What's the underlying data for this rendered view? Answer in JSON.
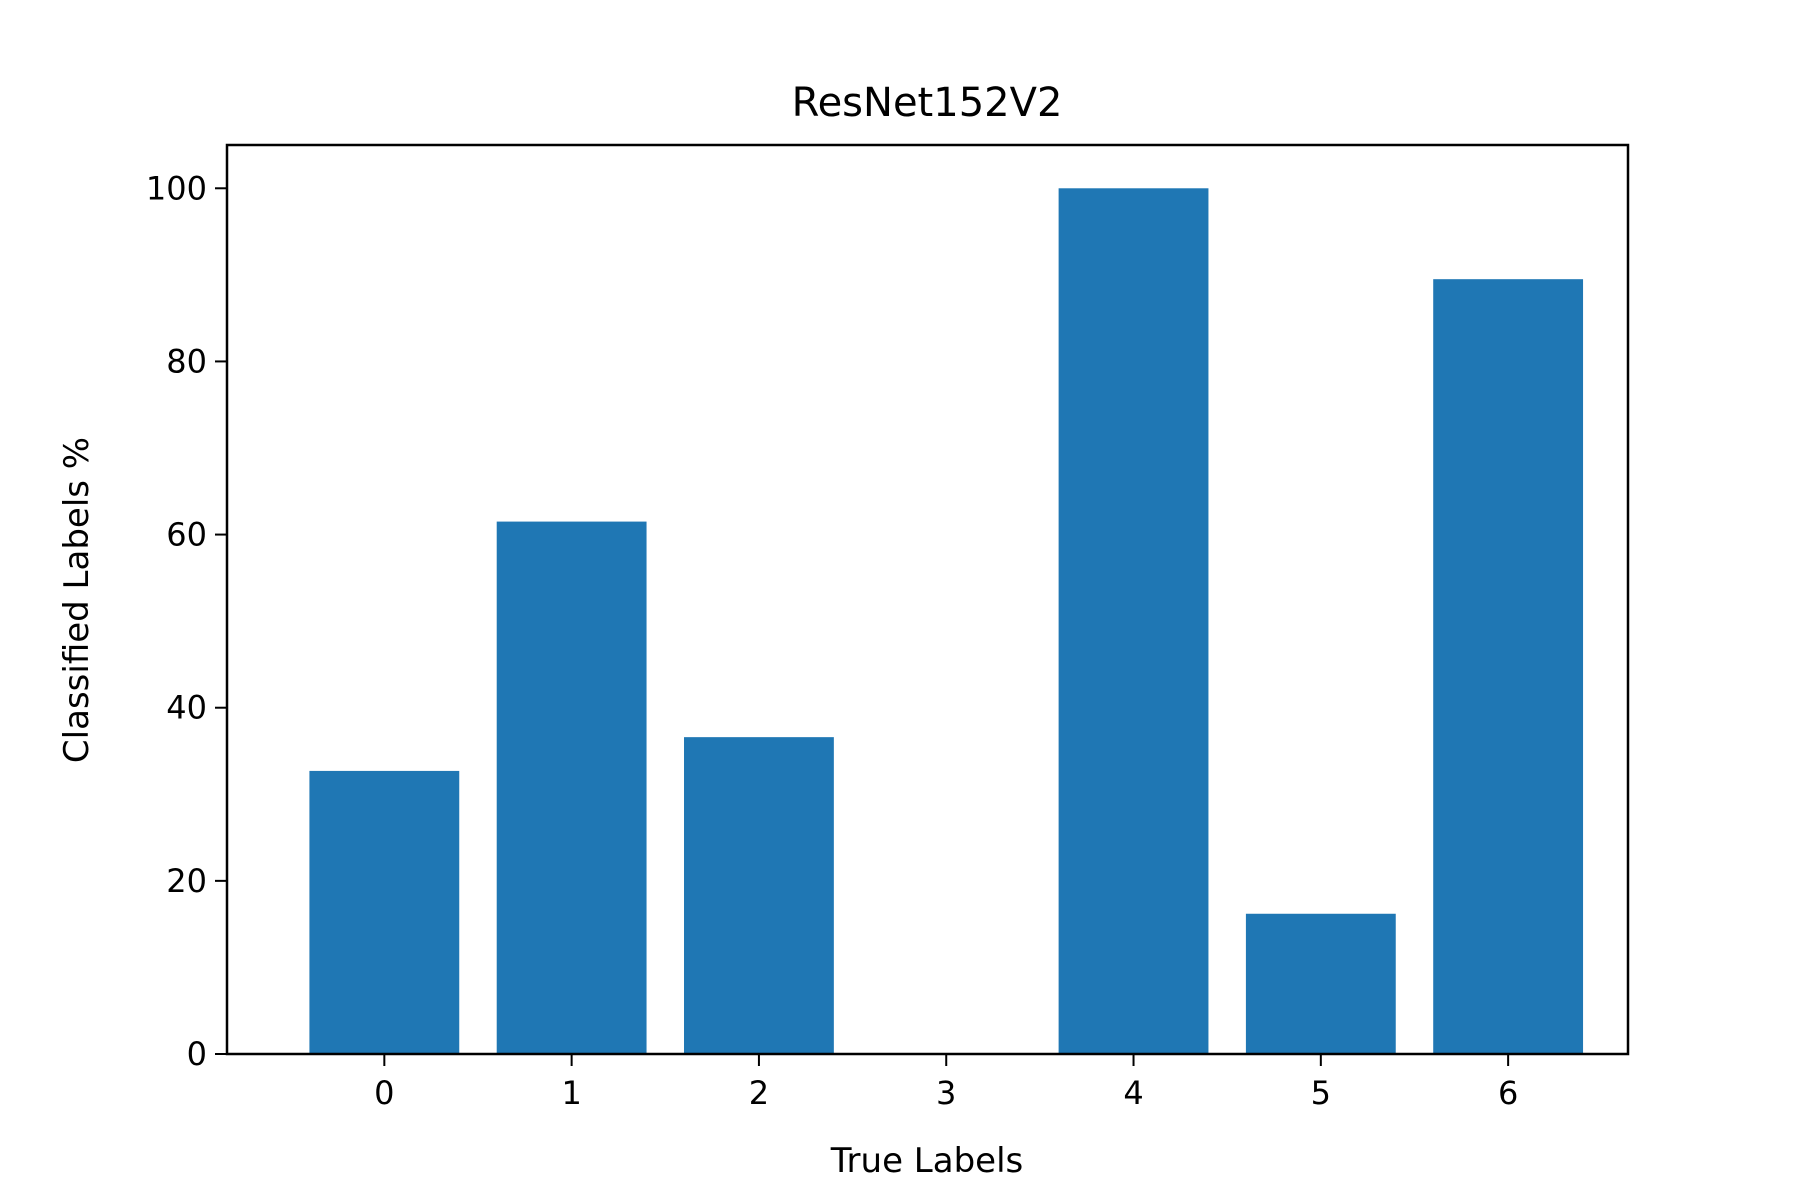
{
  "chart_data": {
    "type": "bar",
    "title": "ResNet152V2",
    "xlabel": "True Labels",
    "ylabel": "Classified Labels %",
    "categories": [
      "0",
      "1",
      "2",
      "3",
      "4",
      "5",
      "6"
    ],
    "values": [
      32.7,
      61.5,
      36.6,
      0,
      100.0,
      16.2,
      89.5
    ],
    "xlim": [
      -0.84,
      6.64
    ],
    "ylim": [
      0,
      105
    ],
    "yticks": [
      0,
      20,
      40,
      60,
      80,
      100
    ],
    "bar_color": "#1f77b4",
    "grid": false,
    "legend": "none"
  }
}
